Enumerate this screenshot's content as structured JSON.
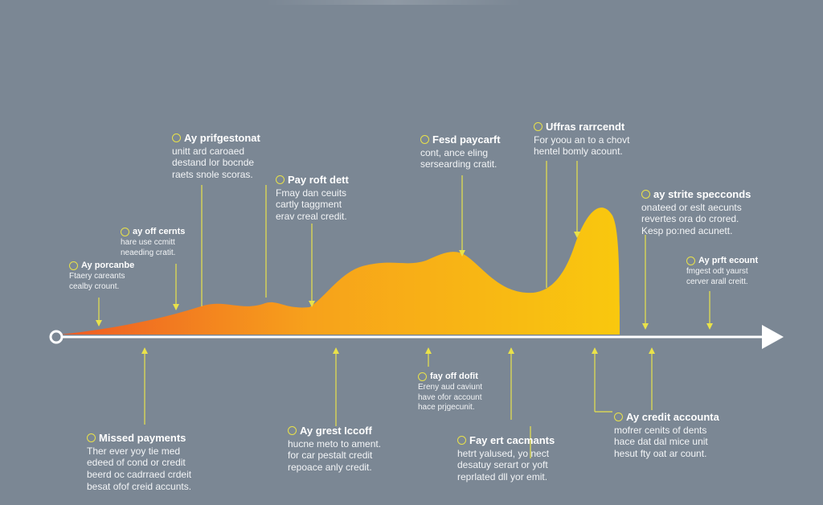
{
  "colors": {
    "background": "#7b8794",
    "gradient_start": "#ee5a24",
    "gradient_mid": "#f7a21b",
    "gradient_end": "#f9c80e",
    "leader_lines": "#e9e24a",
    "axis": "#ffffff"
  },
  "timeline": {
    "start_marker_icon": "ring-start-icon",
    "end_marker_icon": "arrowhead-icon"
  },
  "callouts_above": [
    {
      "id": "a1",
      "title": "Ay porcanbe",
      "body": "Ftaery careants\ncealby crount."
    },
    {
      "id": "a2",
      "title": "ay off cernts",
      "body": "hare use ccmitt\nneaeding cratit."
    },
    {
      "id": "a3",
      "title": "Ay prifgestonat",
      "body": "unitt ard caroaed\ndestand lor bocnde\nraets snole scoras."
    },
    {
      "id": "a4",
      "title": "Pay roft dett",
      "body": "Fmay dan ceuits\ncartly taggment\nerav creal credit."
    },
    {
      "id": "a5",
      "title": "Fesd paycarft",
      "body": "cont, ance eling\nsersearding cratit."
    },
    {
      "id": "a6",
      "title": "Uffras rarrcendt",
      "body": "For yoou an to a chovt\nhentel bomly acount."
    },
    {
      "id": "a7",
      "title": "ay strite specconds",
      "body": "onateed or eslt aecunts\nrevertes ora do crored.\nKesp po:ned acunett."
    },
    {
      "id": "a8",
      "title": "Ay prft ecount",
      "body": "fmgest odt yaurst\ncerver arall creitt."
    }
  ],
  "callouts_below": [
    {
      "id": "b1",
      "title": "Missed payments",
      "body": "Ther ever yoy tie med\nedeed of cond or credit\nbeerd oc cadrraed crdeit\nbesat ofof creid accunts."
    },
    {
      "id": "b2",
      "title": "Ay grest Iccoff",
      "body": "hucne meto to ament.\nfor car pestalt credit\nrepoace anly credit."
    },
    {
      "id": "b3",
      "title": "fay off dofit",
      "body": "Ereny aud caviunt\nhave ofor account\nhace prjgecunit."
    },
    {
      "id": "b4",
      "title": "Fay ert cacmants",
      "body": "hetrt yalused, yo nect\ndesatuy serart or yoft\nreprlated dll yor emit."
    },
    {
      "id": "b5",
      "title": "Ay credit accounta",
      "body": "mofrer cenits of dents\nhace dat dal mice unit\nhesut fty oat ar count."
    }
  ]
}
